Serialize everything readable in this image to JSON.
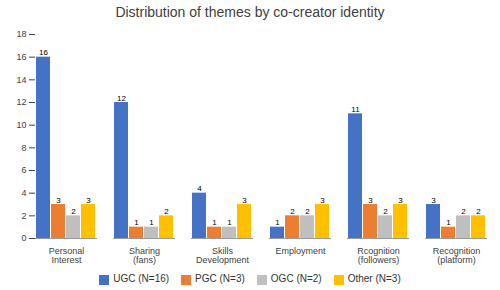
{
  "chart_data": {
    "type": "bar",
    "title": "Distribution of themes by co-creator identity",
    "categories": [
      "Personal Interest",
      "Sharing (fans)",
      "Skills Development",
      "Employment",
      "Rcognition (followers)",
      "Recognition (platform)"
    ],
    "series": [
      {
        "name": "UGC (N=16)",
        "color": "#4472C4",
        "values": [
          16,
          12,
          4,
          1,
          11,
          3
        ]
      },
      {
        "name": "PGC (N=3)",
        "color": "#ED7D31",
        "values": [
          3,
          1,
          1,
          2,
          3,
          1
        ]
      },
      {
        "name": "OGC (N=2)",
        "color": "#BFBFBF",
        "values": [
          2,
          1,
          1,
          2,
          2,
          2
        ]
      },
      {
        "name": "Other (N=3)",
        "color": "#FFC000",
        "values": [
          3,
          2,
          3,
          3,
          3,
          2
        ]
      }
    ],
    "ylim": [
      0,
      18
    ],
    "yticks": [
      0,
      2,
      4,
      6,
      8,
      10,
      12,
      14,
      16,
      18
    ],
    "grid": false,
    "legend": "bottom",
    "data_labels": true
  }
}
